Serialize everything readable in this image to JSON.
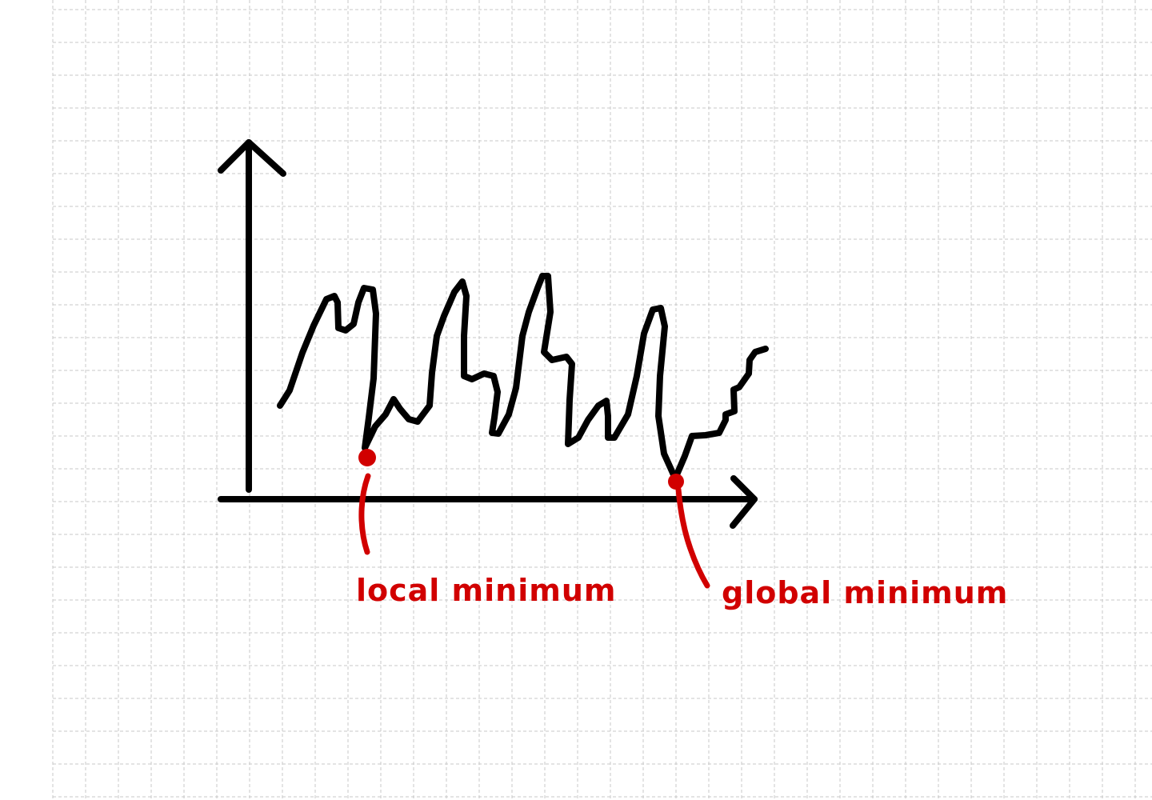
{
  "diagram": {
    "colors": {
      "ink": "#000000",
      "accent": "#d10000",
      "grid": "#c8c8c8",
      "paper": "#ffffff"
    },
    "annotations": {
      "local_minimum": "local minimum",
      "global_minimum": "global minimum"
    }
  }
}
